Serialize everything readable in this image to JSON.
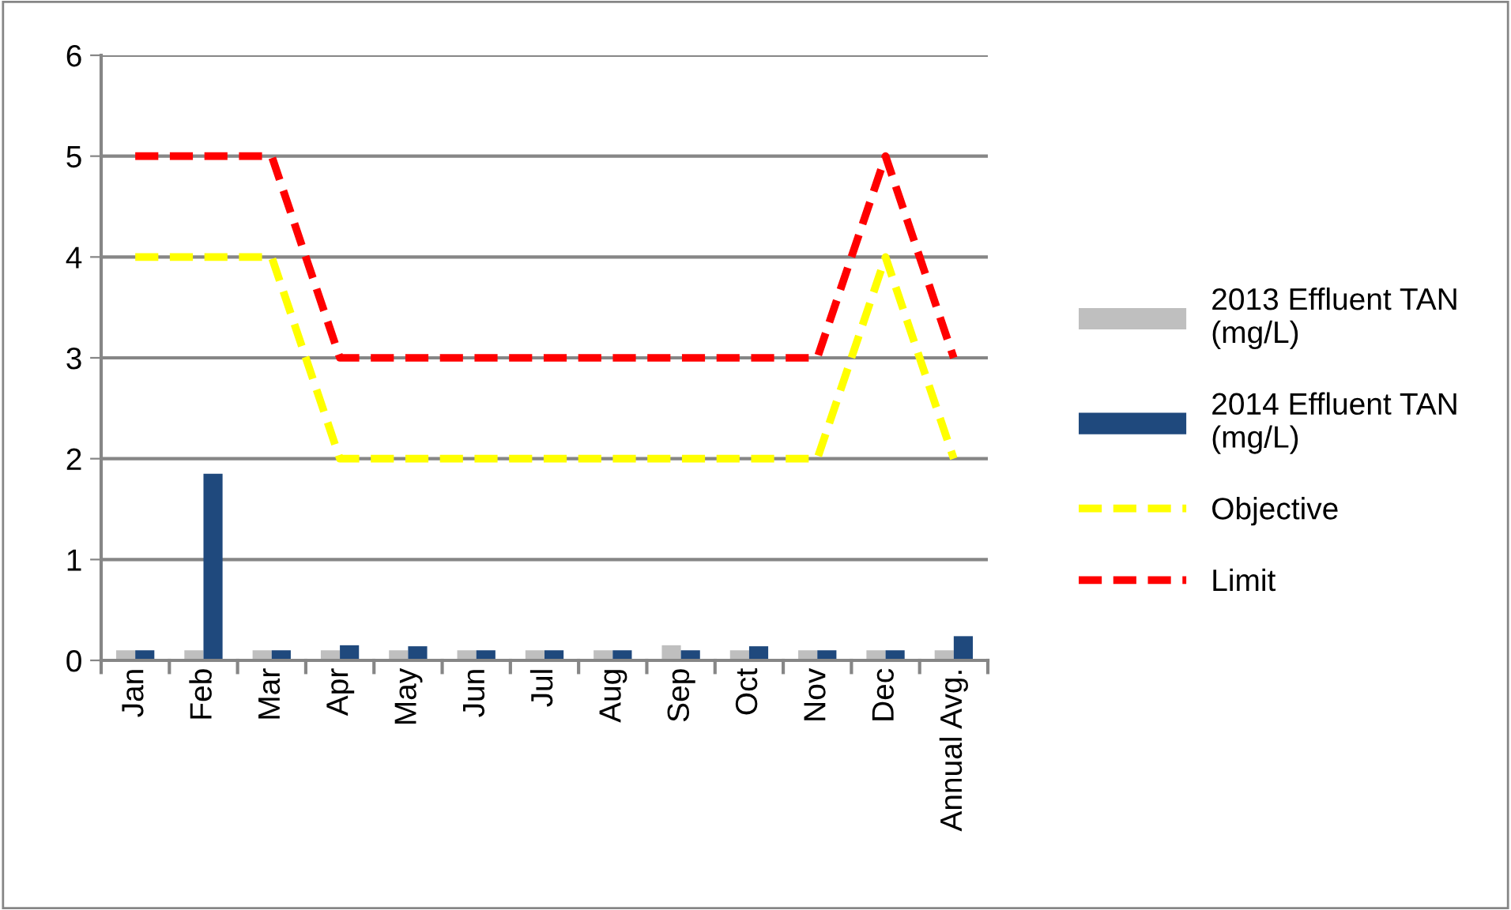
{
  "chart_data": {
    "type": "bar",
    "categories": [
      "Jan",
      "Feb",
      "Mar",
      "Apr",
      "May",
      "Jun",
      "Jul",
      "Aug",
      "Sep",
      "Oct",
      "Nov",
      "Dec",
      "Annual Avg."
    ],
    "series": [
      {
        "name": "2013 Effluent TAN (mg/L)",
        "color": "#bfbfbf",
        "values": [
          0.1,
          0.1,
          0.1,
          0.1,
          0.1,
          0.1,
          0.1,
          0.1,
          0.15,
          0.1,
          0.1,
          0.1,
          0.1
        ]
      },
      {
        "name": "2014 Effluent TAN (mg/L)",
        "color": "#1f497d",
        "values": [
          0.1,
          1.85,
          0.1,
          0.15,
          0.14,
          0.1,
          0.1,
          0.1,
          0.1,
          0.14,
          0.1,
          0.1,
          0.24
        ]
      },
      {
        "name": "Objective",
        "type": "line",
        "color": "#ffff00",
        "line_style": "dashed",
        "values": [
          4,
          4,
          4,
          2,
          2,
          2,
          2,
          2,
          2,
          2,
          2,
          4,
          2
        ]
      },
      {
        "name": "Limit",
        "type": "line",
        "color": "#ff0000",
        "line_style": "dashed",
        "values": [
          5,
          5,
          5,
          3,
          3,
          3,
          3,
          3,
          3,
          3,
          3,
          5,
          3
        ]
      }
    ],
    "ylim": [
      0,
      6
    ],
    "yticks": [
      0,
      1,
      2,
      3,
      4,
      5,
      6
    ],
    "grid": "y",
    "legend": "right",
    "marker": "none"
  }
}
